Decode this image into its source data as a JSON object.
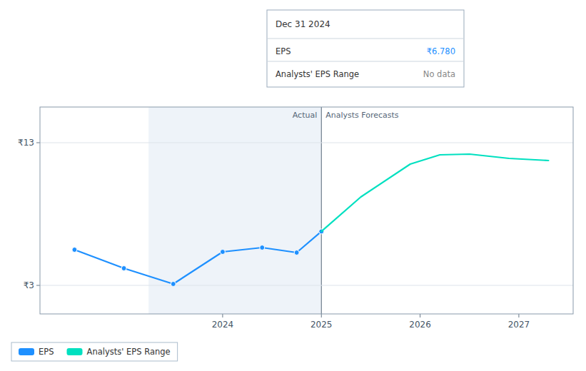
{
  "chart_data": {
    "type": "line",
    "series": [
      {
        "name": "EPS",
        "color": "#1e90ff",
        "marker": "circle",
        "x": [
          2022.5,
          2023.0,
          2023.5,
          2024.0,
          2024.4,
          2024.75,
          2025.0
        ],
        "values": [
          5.5,
          4.2,
          3.1,
          5.35,
          5.65,
          5.3,
          6.78
        ]
      },
      {
        "name": "Analysts' EPS Range",
        "color": "#00e0c0",
        "marker": "none",
        "x": [
          2025.0,
          2025.4,
          2025.9,
          2026.2,
          2026.5,
          2026.9,
          2027.3
        ],
        "values": [
          6.78,
          9.2,
          11.5,
          12.15,
          12.2,
          11.9,
          11.75
        ]
      }
    ],
    "xlim": [
      2022.15,
      2027.55
    ],
    "xticks": [
      2024,
      2025,
      2026,
      2027
    ],
    "ylim": [
      1,
      15.5
    ],
    "yticks": [
      {
        "value": 3,
        "label": "₹3"
      },
      {
        "value": 13,
        "label": "₹13"
      }
    ],
    "grid": true,
    "legend": "bottom-left",
    "highlight": [
      2023.25,
      2025.0
    ],
    "divider": {
      "x": 2025.0,
      "labels": [
        "Actual",
        "Analysts Forecasts"
      ]
    },
    "tooltip": {
      "title": "Dec 31 2024",
      "rows": [
        {
          "label": "EPS",
          "text": "₹6.780",
          "color": "#1e90ff"
        },
        {
          "label": "Analysts' EPS Range",
          "text": "No data",
          "color": "#888888"
        }
      ]
    }
  }
}
